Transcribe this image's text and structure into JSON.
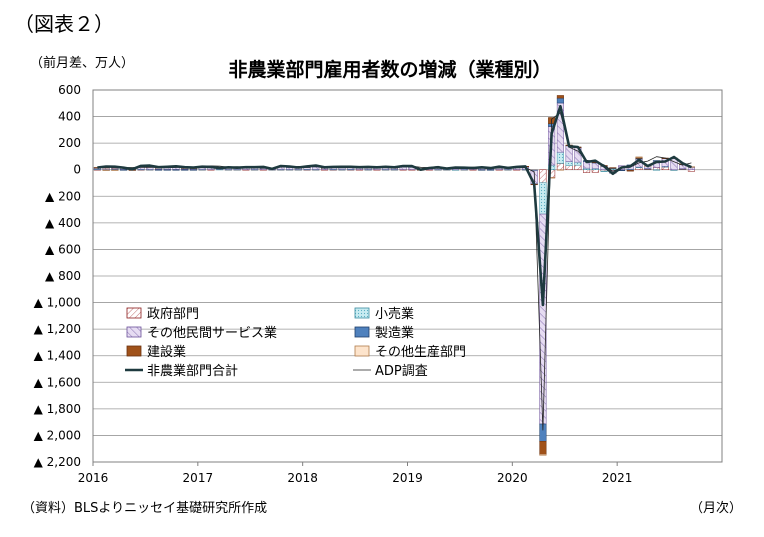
{
  "figure_label": "（図表２）",
  "unit_label": "（前月差、万人）",
  "source_note": "（資料）BLSよりニッセイ基礎研究所作成",
  "x_unit": "（月次）",
  "chart_data": {
    "type": "bar",
    "title": "非農業部門雇用者数の増減（業種別）",
    "ylim": [
      -2200,
      600
    ],
    "y_ticks": [
      600,
      400,
      200,
      0,
      -200,
      -400,
      -600,
      -800,
      -1000,
      -1200,
      -1400,
      -1600,
      -1800,
      -2000,
      -2200
    ],
    "y_tick_labels": [
      "600",
      "400",
      "200",
      "0",
      "▲ 200",
      "▲ 400",
      "▲ 600",
      "▲ 800",
      "▲ 1,000",
      "▲ 1,200",
      "▲ 1,400",
      "▲ 1,600",
      "▲ 1,800",
      "▲ 2,000",
      "▲ 2,200"
    ],
    "x_tick_labels": [
      "2016",
      "2017",
      "2018",
      "2019",
      "2020",
      "2021"
    ],
    "months": [
      "2016-01",
      "2016-02",
      "2016-03",
      "2016-04",
      "2016-05",
      "2016-06",
      "2016-07",
      "2016-08",
      "2016-09",
      "2016-10",
      "2016-11",
      "2016-12",
      "2017-01",
      "2017-02",
      "2017-03",
      "2017-04",
      "2017-05",
      "2017-06",
      "2017-07",
      "2017-08",
      "2017-09",
      "2017-10",
      "2017-11",
      "2017-12",
      "2018-01",
      "2018-02",
      "2018-03",
      "2018-04",
      "2018-05",
      "2018-06",
      "2018-07",
      "2018-08",
      "2018-09",
      "2018-10",
      "2018-11",
      "2018-12",
      "2019-01",
      "2019-02",
      "2019-03",
      "2019-04",
      "2019-05",
      "2019-06",
      "2019-07",
      "2019-08",
      "2019-09",
      "2019-10",
      "2019-11",
      "2019-12",
      "2020-01",
      "2020-02",
      "2020-03",
      "2020-04",
      "2020-05",
      "2020-06",
      "2020-07",
      "2020-08",
      "2020-09",
      "2020-10",
      "2020-11",
      "2020-12",
      "2021-01",
      "2021-02",
      "2021-03",
      "2021-04",
      "2021-05",
      "2021-06",
      "2021-07",
      "2021-08",
      "2021-09"
    ],
    "grid": true,
    "legend_position": "lower-left",
    "series": [
      {
        "name": "政府部門",
        "kind": "bar",
        "color": "#ffffff",
        "stroke": "#8b1a1a",
        "values": [
          1,
          1,
          0,
          1,
          1,
          1,
          1,
          1,
          1,
          1,
          1,
          1,
          1,
          1,
          0,
          1,
          1,
          1,
          1,
          1,
          1,
          1,
          1,
          1,
          1,
          1,
          1,
          1,
          1,
          1,
          1,
          1,
          1,
          1,
          1,
          1,
          1,
          1,
          1,
          1,
          1,
          1,
          1,
          1,
          1,
          1,
          1,
          1,
          1,
          1,
          -2,
          -98,
          -59,
          47,
          30,
          34,
          -22,
          -20,
          -10,
          -7,
          -3,
          -5,
          15,
          5,
          17,
          20,
          -1,
          7,
          -12
        ]
      },
      {
        "name": "小売業",
        "kind": "bar",
        "color": "#bfe6ee",
        "stroke": "#3a8ca0",
        "values": [
          3,
          -1,
          5,
          1,
          0,
          2,
          1,
          2,
          1,
          1,
          2,
          1,
          1,
          0,
          3,
          1,
          1,
          0,
          1,
          0,
          1,
          1,
          1,
          1,
          2,
          1,
          0,
          2,
          1,
          2,
          0,
          1,
          0,
          1,
          1,
          0,
          0,
          1,
          0,
          1,
          1,
          -1,
          1,
          0,
          0,
          1,
          0,
          1,
          0,
          1,
          -5,
          -236,
          35,
          85,
          31,
          23,
          12,
          11,
          -1,
          10,
          0,
          4,
          5,
          4,
          -1,
          6,
          -1,
          1,
          0
        ]
      },
      {
        "name": "その他民間サービス業",
        "kind": "bar",
        "color": "#dcd0ec",
        "stroke": "#6a4f99",
        "values": [
          10,
          14,
          11,
          10,
          3,
          20,
          20,
          12,
          17,
          18,
          10,
          10,
          15,
          17,
          7,
          13,
          12,
          15,
          14,
          10,
          2,
          19,
          16,
          10,
          15,
          20,
          12,
          13,
          14,
          15,
          12,
          15,
          12,
          15,
          12,
          20,
          20,
          1,
          10,
          12,
          6,
          12,
          9,
          9,
          13,
          11,
          18,
          11,
          18,
          20,
          -100,
          -1580,
          290,
          370,
          120,
          110,
          50,
          40,
          27,
          -20,
          30,
          30,
          60,
          20,
          50,
          60,
          85,
          30,
          20
        ]
      },
      {
        "name": "製造業",
        "kind": "bar",
        "color": "#4f81bd",
        "stroke": "#1f3f6a",
        "values": [
          1,
          -1,
          -2,
          -1,
          -1,
          0,
          0,
          -1,
          -1,
          -1,
          -1,
          -1,
          0,
          1,
          1,
          0,
          0,
          1,
          1,
          3,
          0,
          2,
          3,
          3,
          2,
          3,
          2,
          3,
          2,
          3,
          3,
          1,
          2,
          3,
          2,
          3,
          1,
          0,
          0,
          0,
          1,
          0,
          1,
          0,
          -1,
          -4,
          5,
          0,
          0,
          0,
          -2,
          -130,
          22,
          37,
          3,
          3,
          7,
          4,
          2,
          3,
          -1,
          2,
          5,
          0,
          2,
          1,
          3,
          4,
          2
        ]
      },
      {
        "name": "建設業",
        "kind": "bar",
        "color": "#a0521a",
        "stroke": "#6b3210",
        "values": [
          2,
          2,
          1,
          0,
          -1,
          1,
          1,
          1,
          2,
          0,
          1,
          1,
          3,
          1,
          0,
          1,
          0,
          0,
          0,
          3,
          0,
          1,
          2,
          1,
          2,
          6,
          1,
          2,
          3,
          1,
          2,
          1,
          2,
          2,
          1,
          2,
          4,
          -1,
          1,
          2,
          0,
          2,
          1,
          1,
          2,
          0,
          1,
          0,
          4,
          4,
          -2,
          -99,
          46,
          20,
          2,
          1,
          0,
          2,
          3,
          3,
          0,
          -6,
          10,
          0,
          0,
          1,
          1,
          1,
          0
        ]
      },
      {
        "name": "その他生産部門",
        "kind": "bar",
        "color": "#fde4cc",
        "stroke": "#b07a4a",
        "values": [
          0,
          -1,
          -1,
          0,
          0,
          0,
          0,
          0,
          0,
          0,
          0,
          0,
          0,
          0,
          0,
          0,
          0,
          0,
          0,
          0,
          0,
          0,
          0,
          0,
          0,
          0,
          0,
          0,
          0,
          0,
          0,
          0,
          0,
          0,
          0,
          0,
          0,
          0,
          0,
          0,
          0,
          0,
          0,
          0,
          0,
          0,
          0,
          0,
          0,
          0,
          0,
          -7,
          -1,
          -1,
          0,
          0,
          0,
          0,
          0,
          0,
          0,
          0,
          1,
          1,
          0,
          0,
          1,
          1,
          1
        ]
      },
      {
        "name": "非農業部門合計",
        "kind": "line",
        "color": "#1e3a3f",
        "width": 2.6,
        "values": [
          17,
          24,
          23,
          15,
          4,
          29,
          31,
          19,
          22,
          26,
          19,
          16,
          23,
          21,
          12,
          18,
          15,
          19,
          19,
          21,
          6,
          28,
          24,
          17,
          25,
          32,
          18,
          21,
          22,
          22,
          19,
          21,
          18,
          22,
          18,
          28,
          27,
          0,
          13,
          18,
          9,
          16,
          15,
          13,
          18,
          12,
          23,
          14,
          21,
          25,
          -109,
          -1018,
          271,
          478,
          176,
          171,
          58,
          68,
          26,
          -31,
          17,
          26,
          74,
          27,
          58,
          62,
          96,
          48,
          19
        ]
      },
      {
        "name": "ADP調査",
        "kind": "line",
        "color": "#222222",
        "width": 0.8,
        "values": [
          20,
          19,
          20,
          16,
          17,
          18,
          18,
          18,
          15,
          17,
          21,
          15,
          24,
          29,
          27,
          19,
          23,
          17,
          20,
          22,
          11,
          23,
          20,
          25,
          23,
          23,
          21,
          16,
          18,
          18,
          22,
          16,
          23,
          22,
          16,
          27,
          27,
          18,
          16,
          26,
          3,
          12,
          15,
          20,
          13,
          11,
          12,
          20,
          15,
          16,
          -15,
          -1960,
          380,
          430,
          170,
          140,
          71,
          58,
          36,
          -12,
          15,
          18,
          52,
          65,
          98,
          88,
          60,
          35,
          51
        ]
      }
    ]
  }
}
